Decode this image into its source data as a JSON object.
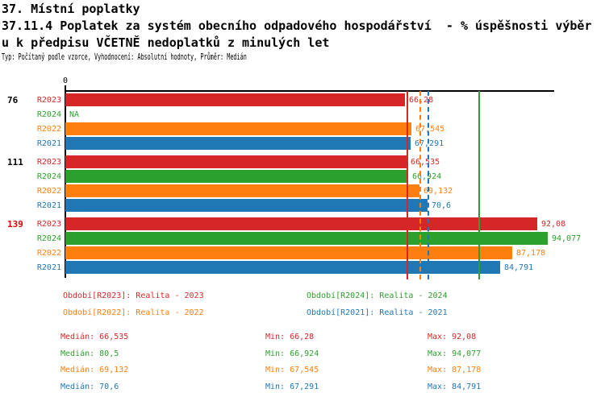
{
  "header": {
    "line1": "37. Místní poplatky",
    "line2": "37.11.4 Poplatek za systém obecního odpadového hospodářství  - % úspěšnosti výběr",
    "line3": "u k předpisu VČETNĚ nedoplatků z minulých let",
    "meta": "Typ: Počítaný podle vzorce, Vyhodnocení: Absolutní hodnoty, Průměr: Medián"
  },
  "colors": {
    "red": "#d62728",
    "green": "#2ca02c",
    "orange": "#ff7f0e",
    "blue": "#1f77b4",
    "axis": "#000000",
    "highlight_group": "#dd0000"
  },
  "chart_data": {
    "type": "bar",
    "orientation": "horizontal",
    "xlim": [
      0,
      95.3
    ],
    "axis_origin_label": "0",
    "series_labels": [
      "R2023",
      "R2024",
      "R2022",
      "R2021"
    ],
    "series_colors": [
      "#d62728",
      "#2ca02c",
      "#ff7f0e",
      "#1f77b4"
    ],
    "groups": [
      {
        "label": "76",
        "label_color": "#000000",
        "values": [
          66.28,
          null,
          67.545,
          67.291
        ],
        "value_labels": [
          "66,28",
          "NA",
          "67,545",
          "67,291"
        ]
      },
      {
        "label": "111",
        "label_color": "#000000",
        "values": [
          66.535,
          66.924,
          69.132,
          70.6
        ],
        "value_labels": [
          "66,535",
          "66,924",
          "69,132",
          "70,6"
        ]
      },
      {
        "label": "139",
        "label_color": "#dd0000",
        "values": [
          92.08,
          94.077,
          87.178,
          84.791
        ],
        "value_labels": [
          "92,08",
          "94,077",
          "87,178",
          "84,791"
        ]
      }
    ],
    "median_lines": [
      {
        "value": 66.535,
        "color": "#d62728",
        "style": "solid"
      },
      {
        "value": 69.132,
        "color": "#ff7f0e",
        "style": "dashed"
      },
      {
        "value": 70.6,
        "color": "#1f77b4",
        "style": "dashed"
      },
      {
        "value": 80.5,
        "color": "#2ca02c",
        "style": "solid"
      }
    ]
  },
  "legend": {
    "items": [
      {
        "label": "Období[R2023]: Realita - 2023",
        "color": "#d62728"
      },
      {
        "label": "Období[R2024]: Realita - 2024",
        "color": "#2ca02c"
      },
      {
        "label": "Období[R2022]: Realita - 2022",
        "color": "#ff7f0e"
      },
      {
        "label": "Období[R2021]: Realita - 2021",
        "color": "#1f77b4"
      }
    ]
  },
  "stats": {
    "rows": [
      {
        "color": "#d62728",
        "median": "Medián: 66,535",
        "min": "Min: 66,28",
        "max": "Max: 92,08"
      },
      {
        "color": "#2ca02c",
        "median": "Medián: 80,5",
        "min": "Min: 66,924",
        "max": "Max: 94,077"
      },
      {
        "color": "#ff7f0e",
        "median": "Medián: 69,132",
        "min": "Min: 67,545",
        "max": "Max: 87,178"
      },
      {
        "color": "#1f77b4",
        "median": "Medián: 70,6",
        "min": "Min: 67,291",
        "max": "Max: 84,791"
      }
    ]
  }
}
